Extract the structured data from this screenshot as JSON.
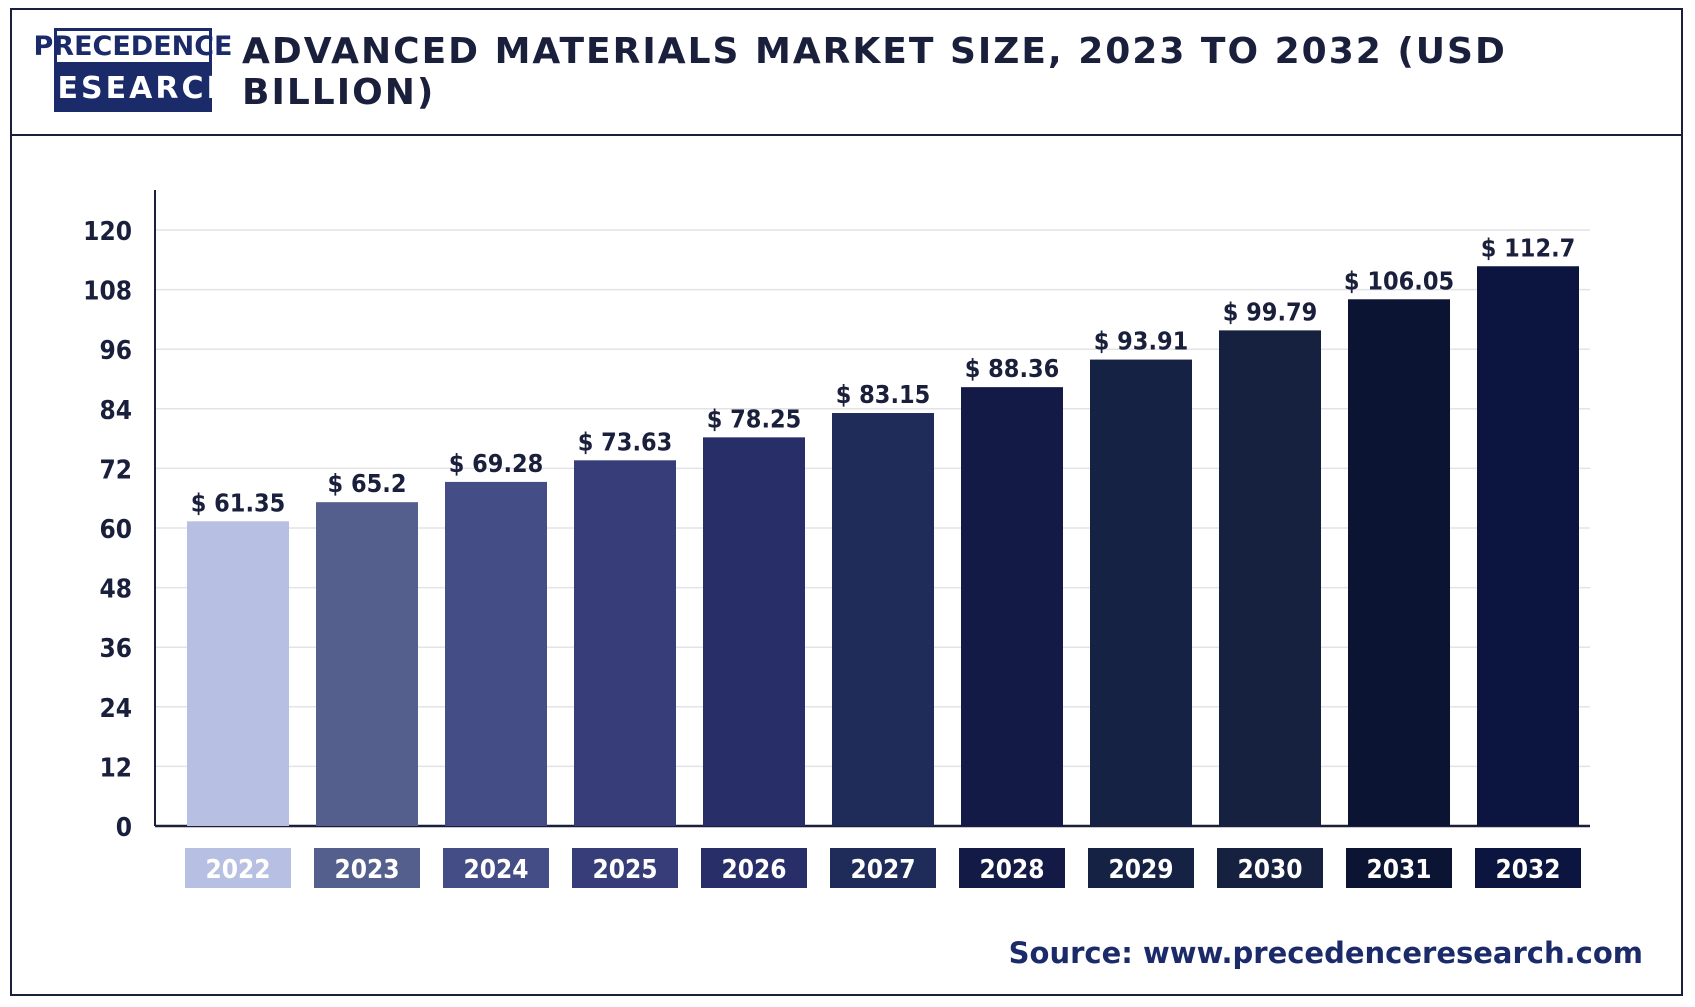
{
  "header": {
    "logo_top": "PRECEDENCE",
    "logo_bottom": "RESEARCH",
    "title": "ADVANCED MATERIALS MARKET SIZE, 2023 TO 2032 (USD BILLION)"
  },
  "source": "Source: www.precedenceresearch.com",
  "chart_data": {
    "type": "bar",
    "title": "ADVANCED MATERIALS MARKET SIZE, 2023 TO 2032 (USD BILLION)",
    "xlabel": "",
    "ylabel": "",
    "categories": [
      "2022",
      "2023",
      "2024",
      "2025",
      "2026",
      "2027",
      "2028",
      "2029",
      "2030",
      "2031",
      "2032"
    ],
    "values": [
      61.35,
      65.2,
      69.28,
      73.63,
      78.25,
      83.15,
      88.36,
      93.91,
      99.79,
      106.05,
      112.7
    ],
    "value_labels": [
      "$ 61.35",
      "$ 65.2",
      "$ 69.28",
      "$ 73.63",
      "$ 78.25",
      "$ 83.15",
      "$ 88.36",
      "$ 93.91",
      "$ 99.79",
      "$ 106.05",
      "$ 112.7"
    ],
    "ylim": [
      0,
      120
    ],
    "yticks": [
      0,
      12,
      24,
      36,
      48,
      60,
      72,
      84,
      96,
      108,
      120
    ],
    "grid": true,
    "legend": "none",
    "colors": [
      "#b7c0e2",
      "#555f8e",
      "#454d86",
      "#363d78",
      "#272e68",
      "#1f2c5a",
      "#121a45",
      "#162244",
      "#16203f",
      "#0c1433",
      "#0c1440"
    ]
  }
}
